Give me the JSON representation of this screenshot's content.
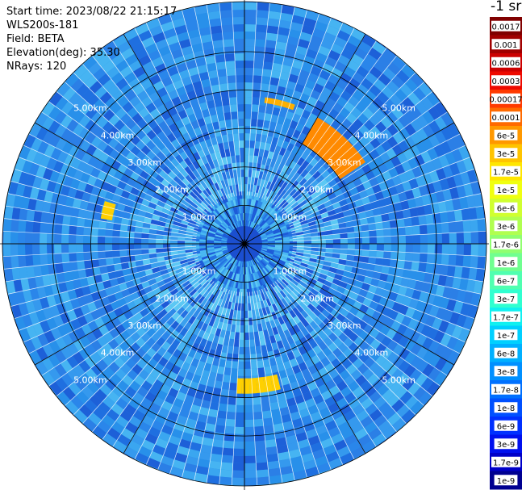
{
  "info": {
    "start_time": "Start time: 2023/08/22 21:15:17",
    "device": "WLS200s-181",
    "field": "Field: BETA",
    "elevation": "Elevation(deg): 35.30",
    "nrays": "NRays: 120"
  },
  "unit_label": "-1 sr",
  "colorbar": {
    "labels": [
      "0.0017",
      "0.001",
      "0.0006",
      "0.0003",
      "0.00017",
      "0.0001",
      "6e-5",
      "3e-5",
      "1.7e-5",
      "1e-5",
      "6e-6",
      "3e-6",
      "1.7e-6",
      "1e-6",
      "6e-7",
      "3e-7",
      "1.7e-7",
      "1e-7",
      "6e-8",
      "3e-8",
      "1.7e-8",
      "1e-8",
      "6e-9",
      "3e-9",
      "1.7e-9",
      "1e-9"
    ],
    "colors": [
      "#800000",
      "#a00000",
      "#cc0000",
      "#ee0a00",
      "#ff3a00",
      "#ff6a00",
      "#ff9800",
      "#ffc400",
      "#ffe600",
      "#f0ff10",
      "#d0ff30",
      "#b0ff50",
      "#90ff70",
      "#70ff90",
      "#50ffb0",
      "#30ffd0",
      "#10f0f0",
      "#00d0ff",
      "#00b0ff",
      "#0090ff",
      "#0070ff",
      "#0050ff",
      "#0030ff",
      "#0010ee",
      "#0000c8",
      "#000090"
    ]
  },
  "range_labels": [
    "1.00km",
    "2.00km",
    "3.00km",
    "4.00km",
    "5.00km"
  ],
  "chart_data": {
    "type": "heatmap",
    "projection": "polar-ppi",
    "n_rays": 120,
    "rings_km": [
      1,
      2,
      3,
      4,
      5
    ],
    "max_range_km": 6.3,
    "sector_lines_deg": [
      0,
      30,
      60,
      90,
      120,
      150,
      180,
      210,
      240,
      270,
      300,
      330
    ],
    "field": "BETA",
    "elevation_deg": 35.3,
    "features": [
      {
        "azimuth_range_deg": [
          8,
          20
        ],
        "range_km": [
          3.7,
          3.85
        ],
        "value": 0.00017
      },
      {
        "azimuth_range_deg": [
          30,
          56
        ],
        "range_km": [
          3.0,
          3.8
        ],
        "value": 0.0001
      },
      {
        "azimuth_range_deg": [
          166,
          183
        ],
        "range_km": [
          3.5,
          3.9
        ],
        "value": 3e-05
      },
      {
        "azimuth_range_deg": [
          280,
          287
        ],
        "range_km": [
          3.5,
          3.8
        ],
        "value": 3e-05
      }
    ]
  }
}
